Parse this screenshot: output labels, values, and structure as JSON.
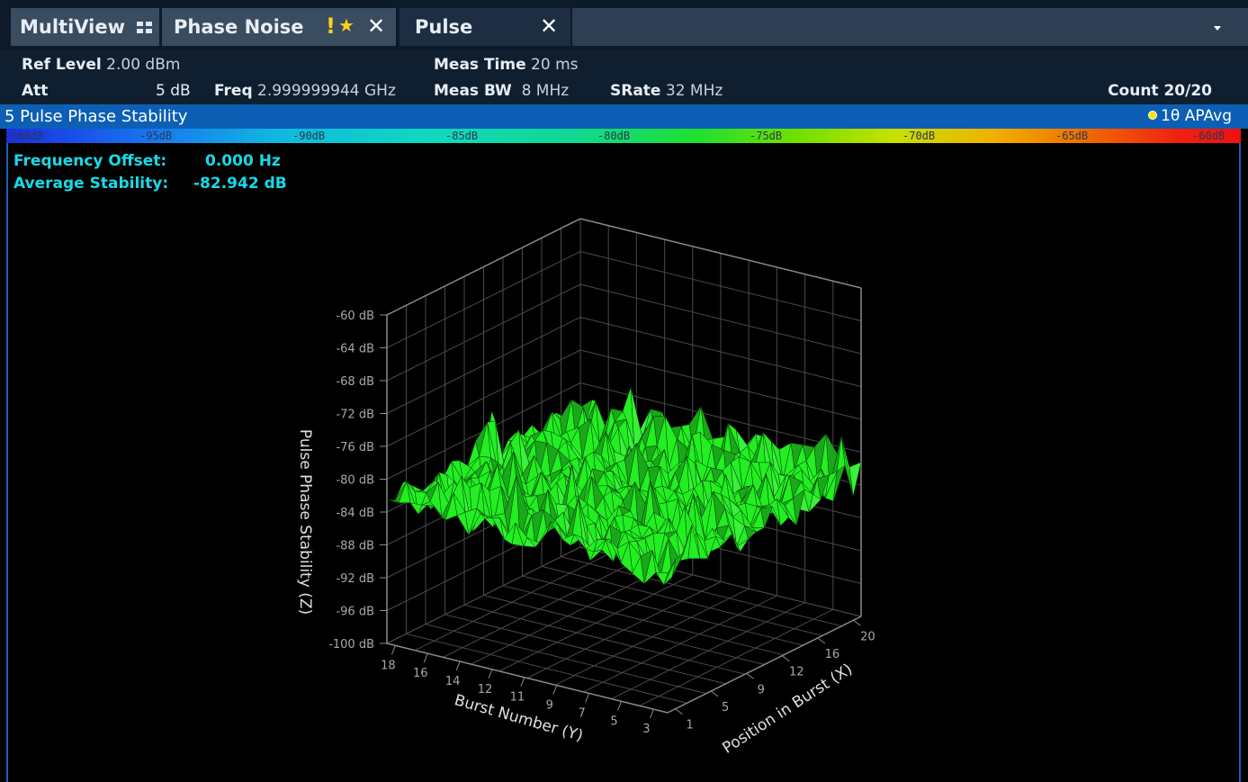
{
  "tabs": {
    "multiview": "MultiView",
    "phase_noise": "Phase Noise",
    "warning": "!",
    "star": "★",
    "pulse": "Pulse",
    "close": "✕"
  },
  "settings": {
    "ref_level_label": "Ref Level",
    "ref_level_value": "2.00 dBm",
    "att_label": "Att",
    "att_value": "5 dB",
    "freq_label": "Freq",
    "freq_value": "2.999999944 GHz",
    "meas_time_label": "Meas Time",
    "meas_time_value": "20 ms",
    "meas_bw_label": "Meas BW",
    "meas_bw_value": "8 MHz",
    "srate_label": "SRate",
    "srate_value": "32 MHz",
    "count": "Count 20/20"
  },
  "window": {
    "title": "5 Pulse Phase Stability",
    "trace_label": "1θ APAvg"
  },
  "color_scale": [
    "-100dB",
    "-95dB",
    "-90dB",
    "-85dB",
    "-80dB",
    "-75dB",
    "-70dB",
    "-65dB",
    "-60dB"
  ],
  "readouts": {
    "freq_offset_label": "Frequency Offset:",
    "freq_offset_value": "0.000 Hz",
    "avg_stab_label": "Average Stability:",
    "avg_stab_value": "-82.942 dB"
  },
  "chart_data": {
    "type": "surface3d",
    "zlabel": "Pulse Phase Stability (Z)",
    "xlabel": "Position in Burst (X)",
    "ylabel": "Burst Number (Y)",
    "z_ticks": [
      "-60 dB",
      "-64 dB",
      "-68 dB",
      "-72 dB",
      "-76 dB",
      "-80 dB",
      "-84 dB",
      "-88 dB",
      "-92 dB",
      "-96 dB",
      "-100 dB"
    ],
    "x_ticks": [
      "1",
      "5",
      "9",
      "12",
      "16",
      "20"
    ],
    "y_ticks": [
      "18",
      "16",
      "14",
      "12",
      "11",
      "9",
      "7",
      "5",
      "3"
    ],
    "zlim": [
      -100,
      -60
    ],
    "surface_color": "#22ee22",
    "average_level": -82.942
  }
}
